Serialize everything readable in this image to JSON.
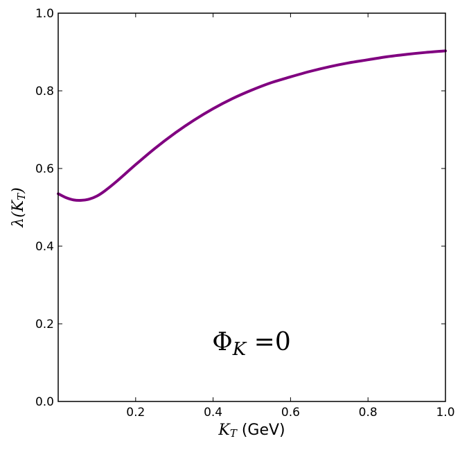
{
  "chart_data": {
    "type": "line",
    "xlabel": {
      "symbol": "K",
      "subscript": "T",
      "unit": " (GeV)"
    },
    "ylabel": {
      "prefix": "λ(",
      "symbol": "K",
      "subscript": "T",
      "suffix": ")"
    },
    "annotation": {
      "symbol": "Φ",
      "subscript": "K",
      "text": " =0"
    },
    "xlim": [
      0.0,
      1.0
    ],
    "ylim": [
      0.0,
      1.0
    ],
    "xticks": [
      0.2,
      0.4,
      0.6,
      0.8,
      1.0
    ],
    "xtick_labels": [
      "0.2",
      "0.4",
      "0.6",
      "0.8",
      "1.0"
    ],
    "yticks": [
      0.0,
      0.2,
      0.4,
      0.6,
      0.8,
      1.0
    ],
    "ytick_labels": [
      "0.0",
      "0.2",
      "0.4",
      "0.6",
      "0.8",
      "1.0"
    ],
    "grid": false,
    "series": [
      {
        "color": "#800080",
        "x": [
          0.0,
          0.02,
          0.04,
          0.06,
          0.08,
          0.1,
          0.12,
          0.15,
          0.2,
          0.25,
          0.3,
          0.35,
          0.4,
          0.45,
          0.5,
          0.55,
          0.6,
          0.65,
          0.7,
          0.75,
          0.8,
          0.85,
          0.9,
          0.95,
          1.0
        ],
        "y": [
          0.535,
          0.525,
          0.519,
          0.518,
          0.521,
          0.529,
          0.542,
          0.566,
          0.61,
          0.652,
          0.69,
          0.724,
          0.754,
          0.78,
          0.802,
          0.821,
          0.836,
          0.85,
          0.862,
          0.872,
          0.88,
          0.888,
          0.894,
          0.899,
          0.903
        ]
      }
    ]
  }
}
